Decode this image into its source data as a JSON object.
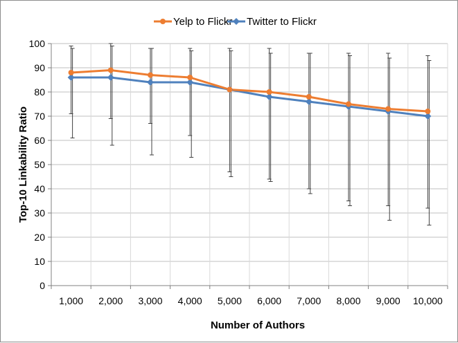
{
  "chart_data": {
    "type": "line",
    "xlabel": "Number of Authors",
    "ylabel": "Top-10 Linkability Ratio",
    "categories": [
      "1,000",
      "2,000",
      "3,000",
      "4,000",
      "5,000",
      "6,000",
      "7,000",
      "8,000",
      "9,000",
      "10,000"
    ],
    "ylim": [
      0,
      100
    ],
    "yticks": [
      "0",
      "10",
      "20",
      "30",
      "40",
      "50",
      "60",
      "70",
      "80",
      "90",
      "100"
    ],
    "grid": true,
    "legend_position": "top-center",
    "series": [
      {
        "name": "Yelp to Flickr",
        "color": "#ED7D31",
        "marker": "circle",
        "values": [
          88,
          89,
          87,
          86,
          81,
          80,
          78,
          75,
          73,
          72
        ],
        "error_low": [
          71,
          69,
          67,
          62,
          47,
          44,
          40,
          35,
          33,
          32
        ],
        "error_high": [
          99,
          100,
          98,
          98,
          98,
          98,
          96,
          96,
          96,
          95
        ]
      },
      {
        "name": "Twitter to Flickr",
        "color": "#4F81BD",
        "marker": "diamond",
        "values": [
          86,
          86,
          84,
          84,
          81,
          78,
          76,
          74,
          72,
          70
        ],
        "error_low": [
          61,
          58,
          54,
          53,
          45,
          43,
          38,
          33,
          27,
          25
        ],
        "error_high": [
          98,
          99,
          98,
          97,
          97,
          96,
          96,
          95,
          94,
          93
        ]
      }
    ]
  }
}
